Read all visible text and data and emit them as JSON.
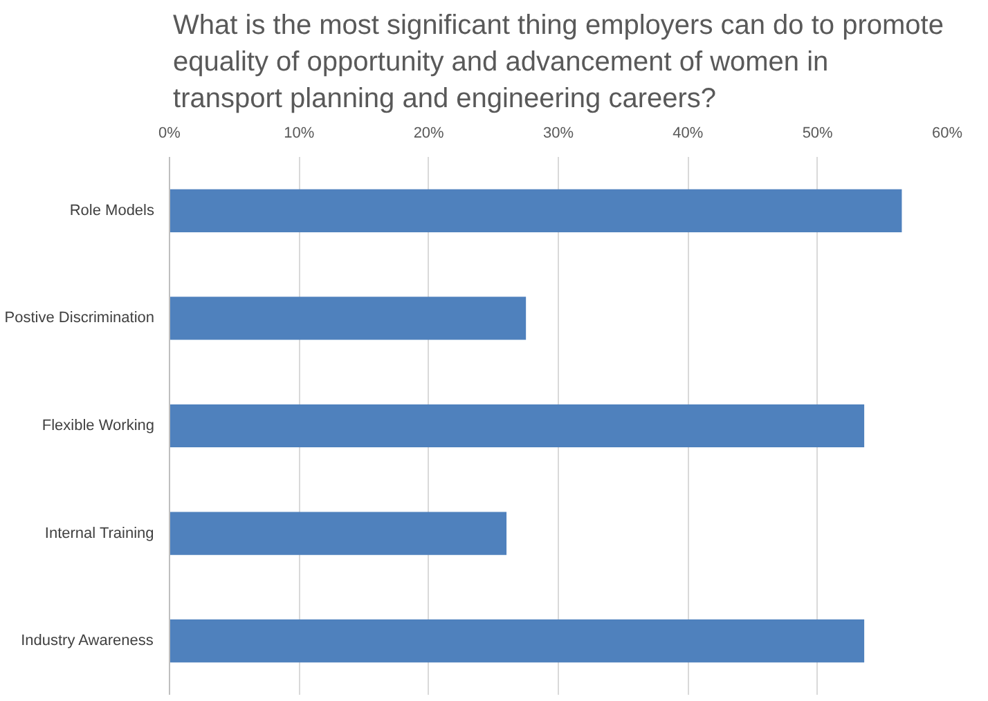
{
  "chart_data": {
    "type": "bar",
    "orientation": "horizontal",
    "title": "What is the most significant thing employers can do to promote\nequality of opportunity and advancement of women in\ntransport planning and engineering careers?",
    "categories": [
      "Role Models",
      "Postive Discrimination",
      "Flexible Working",
      "Internal Training",
      "Industry Awareness"
    ],
    "values": [
      56.5,
      27.5,
      53.6,
      26,
      53.6
    ],
    "color": "#4f81bd",
    "xlim": [
      0,
      60
    ],
    "xticks": [
      {
        "value": 0,
        "label": "0%"
      },
      {
        "value": 10,
        "label": "10%"
      },
      {
        "value": 20,
        "label": "20%"
      },
      {
        "value": 30,
        "label": "30%"
      },
      {
        "value": 40,
        "label": "40%"
      },
      {
        "value": 50,
        "label": "50%"
      },
      {
        "value": 60,
        "label": "60%"
      }
    ],
    "grid": "x"
  }
}
